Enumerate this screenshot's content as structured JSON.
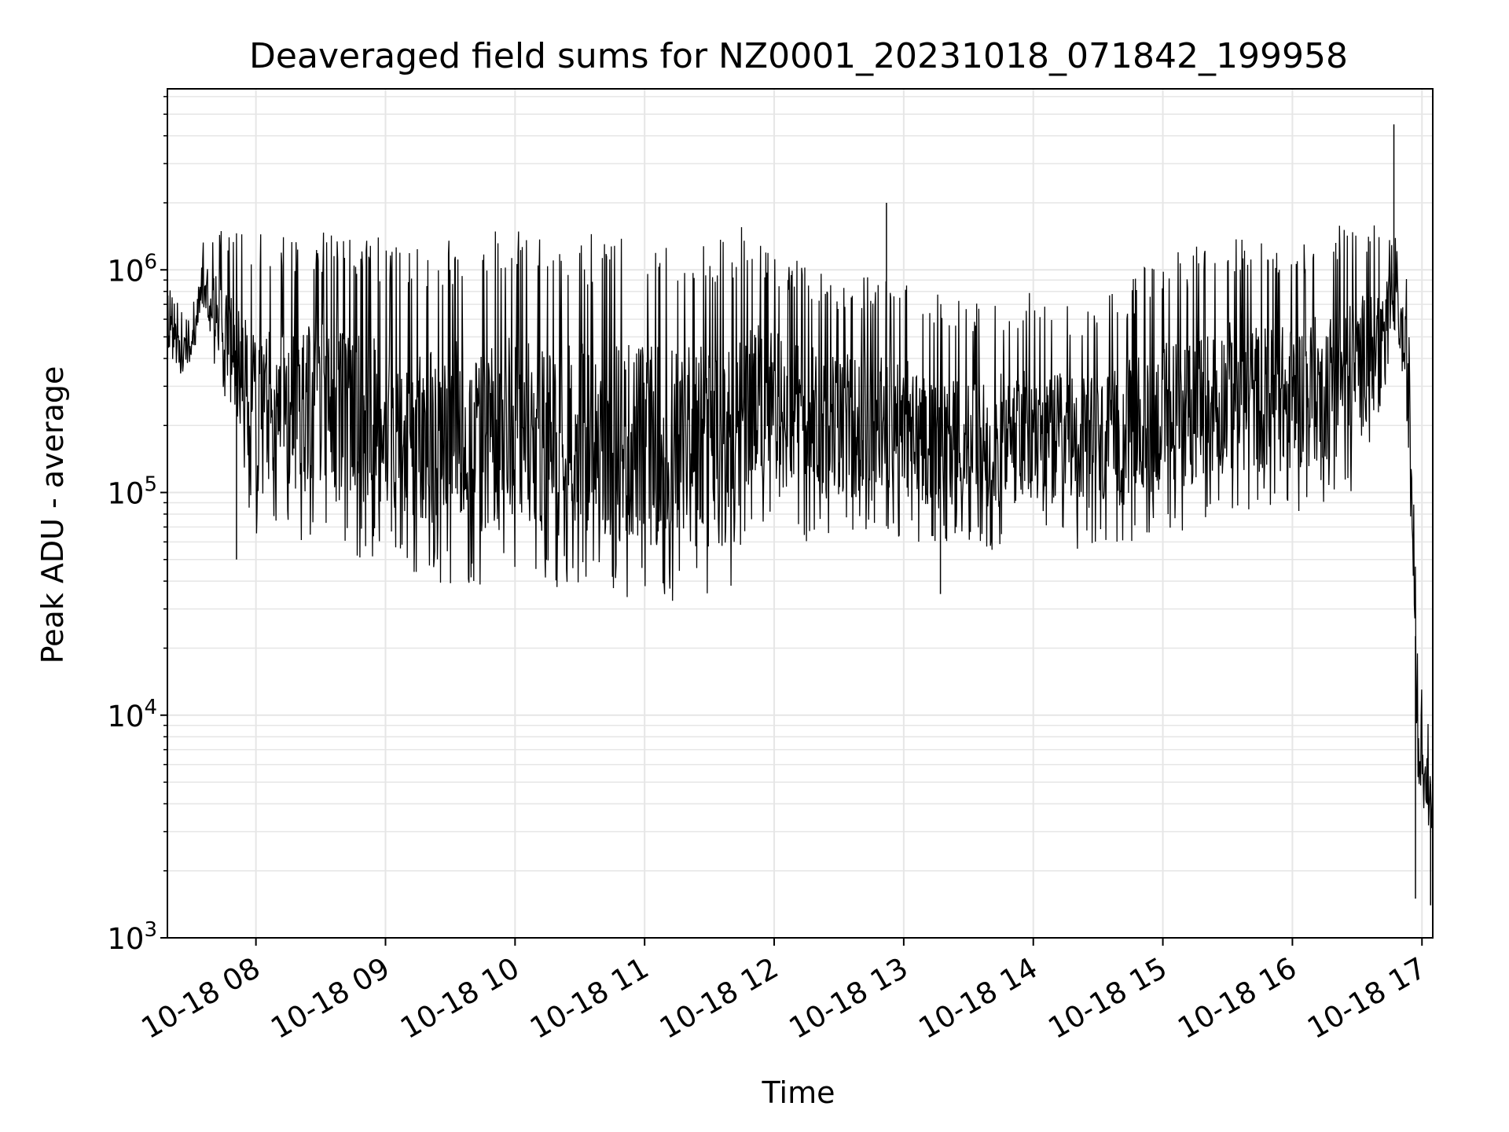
{
  "chart_data": {
    "type": "line",
    "title": "Deaveraged field sums for NZ0001_20231018_071842_199958",
    "xlabel": "Time",
    "ylabel": "Peak ADU - average",
    "yscale": "log",
    "xlim": [
      "10-18 07:19",
      "10-18 17:05"
    ],
    "ylim": [
      1000,
      6500000
    ],
    "grid": true,
    "legend": "none",
    "line_color": "#000000",
    "x_ticks": [
      {
        "label": "10-18 08",
        "hour": 8
      },
      {
        "label": "10-18 09",
        "hour": 9
      },
      {
        "label": "10-18 10",
        "hour": 10
      },
      {
        "label": "10-18 11",
        "hour": 11
      },
      {
        "label": "10-18 12",
        "hour": 12
      },
      {
        "label": "10-18 13",
        "hour": 13
      },
      {
        "label": "10-18 14",
        "hour": 14
      },
      {
        "label": "10-18 15",
        "hour": 15
      },
      {
        "label": "10-18 16",
        "hour": 16
      },
      {
        "label": "10-18 17",
        "hour": 17
      }
    ],
    "y_ticks": [
      {
        "base": "10",
        "exp": "3",
        "value": 1000
      },
      {
        "base": "10",
        "exp": "4",
        "value": 10000
      },
      {
        "base": "10",
        "exp": "5",
        "value": 100000
      },
      {
        "base": "10",
        "exp": "6",
        "value": 1000000
      }
    ],
    "series": [
      {
        "envelope": [
          {
            "t": "07:19",
            "low": 300000,
            "high": 900000
          },
          {
            "t": "07:30",
            "low": 380000,
            "high": 600000
          },
          {
            "t": "07:35",
            "low": 600000,
            "high": 1500000
          },
          {
            "t": "07:45",
            "low": 250000,
            "high": 1500000
          },
          {
            "t": "08:00",
            "low": 60000,
            "high": 1500000
          },
          {
            "t": "08:20",
            "low": 60000,
            "high": 1600000
          },
          {
            "t": "08:45",
            "low": 50000,
            "high": 1500000
          },
          {
            "t": "09:00",
            "low": 50000,
            "high": 1400000
          },
          {
            "t": "09:15",
            "low": 40000,
            "high": 1300000
          },
          {
            "t": "09:45",
            "low": 38000,
            "high": 1500000
          },
          {
            "t": "10:30",
            "low": 36000,
            "high": 1500000
          },
          {
            "t": "11:00",
            "low": 32000,
            "high": 1500000
          },
          {
            "t": "11:42",
            "low": 32000,
            "high": 1500000
          },
          {
            "t": "11:45",
            "low": 60000,
            "high": 1600000
          },
          {
            "t": "12:30",
            "low": 60000,
            "high": 1000000
          },
          {
            "t": "13:00",
            "low": 60000,
            "high": 900000
          },
          {
            "t": "13:30",
            "low": 55000,
            "high": 700000
          },
          {
            "t": "14:00",
            "low": 55000,
            "high": 800000
          },
          {
            "t": "14:30",
            "low": 55000,
            "high": 700000
          },
          {
            "t": "15:00",
            "low": 60000,
            "high": 1200000
          },
          {
            "t": "15:30",
            "low": 80000,
            "high": 1400000
          },
          {
            "t": "16:00",
            "low": 80000,
            "high": 1300000
          },
          {
            "t": "16:30",
            "low": 100000,
            "high": 1800000
          },
          {
            "t": "16:48",
            "low": 450000,
            "high": 1400000
          },
          {
            "t": "16:54",
            "low": 150000,
            "high": 900000
          },
          {
            "t": "16:58",
            "low": 4000,
            "high": 20000
          },
          {
            "t": "17:04",
            "low": 3000,
            "high": 8000
          }
        ],
        "spikes": [
          {
            "t": "07:51",
            "value": 50000
          },
          {
            "t": "12:52",
            "value": 2000000
          },
          {
            "t": "13:17",
            "value": 35000
          },
          {
            "t": "16:47",
            "value": 4500000
          },
          {
            "t": "16:57",
            "value": 1500
          },
          {
            "t": "17:04",
            "value": 1400
          }
        ]
      }
    ]
  }
}
